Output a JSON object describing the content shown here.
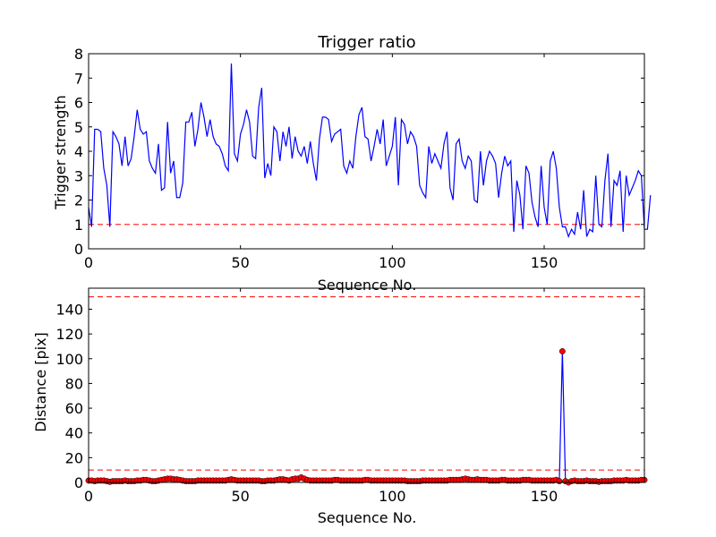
{
  "chart_data": [
    {
      "type": "line",
      "title": "Trigger ratio",
      "xlabel": "Sequence No.",
      "ylabel": "Trigger strength",
      "xlim": [
        0,
        183
      ],
      "ylim": [
        0,
        8
      ],
      "xticks": [
        0,
        50,
        100,
        150
      ],
      "yticks": [
        0,
        1,
        2,
        3,
        4,
        5,
        6,
        7,
        8
      ],
      "grid": false,
      "line_color": "#0000ff",
      "threshold": {
        "value": 1,
        "color": "#ff0000",
        "style": "dashed"
      },
      "series": [
        {
          "x_start": 0,
          "values": [
            1.7,
            0.9,
            4.9,
            4.9,
            4.8,
            3.3,
            2.6,
            0.9,
            4.8,
            4.6,
            4.3,
            3.4,
            4.6,
            3.4,
            3.7,
            4.6,
            5.7,
            4.9,
            4.7,
            4.8,
            3.6,
            3.3,
            3.1,
            4.3,
            2.4,
            2.5,
            5.2,
            3.1,
            3.6,
            2.1,
            2.1,
            2.7,
            5.2,
            5.2,
            5.6,
            4.2,
            4.9,
            6.0,
            5.4,
            4.6,
            5.3,
            4.6,
            4.3,
            4.2,
            3.9,
            3.4,
            3.2,
            7.6,
            3.9,
            3.6,
            4.7,
            5.1,
            5.7,
            5.2,
            3.8,
            3.7,
            5.8,
            6.6,
            2.9,
            3.5,
            3.0,
            5.0,
            4.8,
            3.6,
            4.8,
            4.2,
            5.0,
            3.7,
            4.6,
            4.0,
            3.8,
            4.2,
            3.5,
            4.4,
            3.5,
            2.8,
            4.5,
            5.4,
            5.4,
            5.3,
            4.4,
            4.7,
            4.8,
            4.9,
            3.4,
            3.1,
            3.6,
            3.3,
            4.6,
            5.5,
            5.8,
            4.6,
            4.5,
            3.6,
            4.2,
            4.9,
            4.3,
            5.3,
            3.4,
            3.8,
            4.2,
            5.4,
            2.6,
            5.3,
            5.1,
            4.3,
            4.8,
            4.6,
            4.2,
            2.6,
            2.3,
            2.1,
            4.2,
            3.5,
            3.9,
            3.6,
            3.3,
            4.3,
            4.8,
            2.5,
            2.0,
            4.3,
            4.5,
            3.6,
            3.3,
            3.8,
            3.6,
            2.0,
            1.9,
            4.0,
            2.6,
            3.6,
            4.0,
            3.8,
            3.5,
            2.1,
            3.1,
            3.8,
            3.4,
            3.6,
            0.7,
            2.8,
            2.2,
            0.8,
            3.4,
            3.1,
            1.9,
            1.3,
            0.9,
            3.4,
            1.7,
            1.0,
            3.6,
            4.0,
            3.3,
            1.7,
            0.9,
            0.9,
            0.5,
            0.8,
            0.6,
            1.5,
            0.8,
            2.4,
            0.5,
            0.8,
            0.7,
            3.0,
            1.0,
            0.9,
            2.8,
            3.9,
            0.9,
            2.8,
            2.6,
            3.2,
            0.7,
            3.0,
            2.2,
            2.5,
            2.8,
            3.2,
            3.0,
            0.8,
            0.8,
            2.2
          ]
        }
      ]
    },
    {
      "type": "line",
      "title": "",
      "xlabel": "Sequence No.",
      "ylabel": "Distance [pix]",
      "xlim": [
        0,
        183
      ],
      "ylim": [
        0,
        157
      ],
      "xticks": [
        0,
        50,
        100,
        150
      ],
      "yticks": [
        0,
        20,
        40,
        60,
        80,
        100,
        120,
        140
      ],
      "grid": false,
      "line_color": "#0000ff",
      "marker": {
        "shape": "circle",
        "fill": "#ff0000",
        "edge": "#000000"
      },
      "thresholds": [
        {
          "value": 10,
          "color": "#ff0000",
          "style": "dashed"
        },
        {
          "value": 150,
          "color": "#ff0000",
          "style": "dashed"
        }
      ],
      "series": [
        {
          "x_start": 0,
          "values": [
            1.5,
            1.5,
            1,
            1.5,
            1.5,
            1.5,
            1,
            0.5,
            1,
            1,
            1,
            1,
            1.5,
            1,
            1,
            1,
            1.5,
            1.5,
            2,
            2,
            1.5,
            1,
            1,
            1.5,
            2,
            2.5,
            3,
            3,
            2.5,
            2.5,
            2,
            1.5,
            1,
            1,
            1,
            1,
            1.5,
            1.5,
            1.5,
            1.5,
            1.5,
            1.5,
            1.5,
            1.5,
            1.5,
            1.5,
            2,
            2.5,
            2,
            1.5,
            1.5,
            1.5,
            1.5,
            1.5,
            1.5,
            1.5,
            1.5,
            1,
            1,
            1.5,
            1.5,
            1.5,
            2,
            2.5,
            2.5,
            2,
            1.5,
            2.5,
            3,
            3,
            4,
            3,
            2,
            1.5,
            1.5,
            1.5,
            1.5,
            1.5,
            1.5,
            1.5,
            1.5,
            2,
            2,
            1.5,
            1.5,
            1.5,
            1.5,
            1.5,
            1.5,
            1.5,
            1.5,
            2,
            2,
            1.5,
            1.5,
            1.5,
            1.5,
            1.5,
            1.5,
            1.5,
            1.5,
            1.5,
            1.5,
            1.5,
            1.5,
            1,
            1,
            1,
            1,
            1,
            1.5,
            1.5,
            1.5,
            1.5,
            1.5,
            1.5,
            1.5,
            1.5,
            1.5,
            2,
            2,
            2,
            2,
            2.5,
            3,
            2.5,
            2,
            2,
            2.5,
            2,
            2,
            2,
            1.5,
            1.5,
            1.5,
            1.5,
            2,
            2,
            1.5,
            1.5,
            1.5,
            1.5,
            1.5,
            2,
            2,
            2,
            1.5,
            1.5,
            1.5,
            1.5,
            1.5,
            1.5,
            1.5,
            1.5,
            2,
            1,
            106,
            1,
            0,
            1,
            1.5,
            1,
            1,
            1,
            1.5,
            1,
            1,
            1,
            0.5,
            1,
            1,
            1,
            1,
            1.5,
            1.5,
            1.5,
            1.5,
            2,
            1.5,
            1.5,
            1.5,
            1.5,
            2,
            2
          ]
        }
      ]
    }
  ]
}
